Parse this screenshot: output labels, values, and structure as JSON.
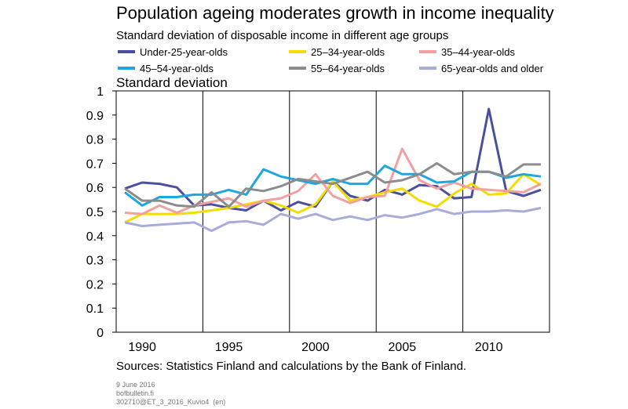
{
  "title": "Population ageing moderates growth in income inequality",
  "subtitle": "Standard deviation of disposable income in different age groups",
  "source": "Sources: Statistics Finland and calculations by the Bank of Finland.",
  "footer": {
    "date": "9 June 2016",
    "site": "bofbulletin.fi",
    "code": "302710@ET_3_2016_Kuvio4",
    "lang": "(en)"
  },
  "chart_data": {
    "type": "line",
    "ylabel": "Standard deviation",
    "ylim": [
      0,
      1
    ],
    "yticks": [
      "0",
      "0.1",
      "0.2",
      "0.3",
      "0.4",
      "0.5",
      "0.6",
      "0.7",
      "0.8",
      "0.9",
      "1"
    ],
    "xlim": [
      1988.5,
      2013.5
    ],
    "xticks": [
      "1990",
      "1995",
      "2000",
      "2005",
      "2010"
    ],
    "grid": "vertical",
    "legend_position": "top",
    "x": [
      1989,
      1990,
      1991,
      1992,
      1993,
      1994,
      1995,
      1996,
      1997,
      1998,
      1999,
      2000,
      2001,
      2002,
      2003,
      2004,
      2005,
      2006,
      2007,
      2008,
      2009,
      2010,
      2011,
      2012,
      2013
    ],
    "series": [
      {
        "name": "Under-25-year-olds",
        "color": "#4a4f9e",
        "values": [
          0.595,
          0.62,
          0.615,
          0.6,
          0.525,
          0.53,
          0.515,
          0.505,
          0.545,
          0.505,
          0.54,
          0.52,
          0.625,
          0.565,
          0.545,
          0.59,
          0.57,
          0.61,
          0.605,
          0.555,
          0.56,
          0.925,
          0.585,
          0.565,
          0.59
        ]
      },
      {
        "name": "25–34-year-olds",
        "color": "#f5dc00",
        "values": [
          0.455,
          0.49,
          0.49,
          0.49,
          0.495,
          0.505,
          0.515,
          0.53,
          0.545,
          0.525,
          0.495,
          0.53,
          0.625,
          0.545,
          0.56,
          0.58,
          0.595,
          0.545,
          0.52,
          0.575,
          0.615,
          0.57,
          0.575,
          0.655,
          0.61
        ]
      },
      {
        "name": "35–44-year-olds",
        "color": "#f2a0a0",
        "values": [
          0.495,
          0.49,
          0.525,
          0.495,
          0.525,
          0.54,
          0.555,
          0.52,
          0.545,
          0.555,
          0.585,
          0.655,
          0.565,
          0.535,
          0.56,
          0.565,
          0.76,
          0.63,
          0.595,
          0.62,
          0.595,
          0.59,
          0.585,
          0.58,
          0.615
        ]
      },
      {
        "name": "45–54-year-olds",
        "color": "#1ea6e0",
        "values": [
          0.58,
          0.525,
          0.56,
          0.56,
          0.57,
          0.57,
          0.59,
          0.57,
          0.675,
          0.645,
          0.63,
          0.615,
          0.635,
          0.615,
          0.615,
          0.69,
          0.655,
          0.655,
          0.62,
          0.625,
          0.665,
          0.665,
          0.64,
          0.655,
          0.645
        ]
      },
      {
        "name": "55–64-year-olds",
        "color": "#8c8c8c",
        "values": [
          0.595,
          0.545,
          0.545,
          0.525,
          0.52,
          0.58,
          0.52,
          0.595,
          0.585,
          0.605,
          0.635,
          0.625,
          0.615,
          0.64,
          0.665,
          0.62,
          0.63,
          0.655,
          0.7,
          0.655,
          0.665,
          0.665,
          0.645,
          0.695,
          0.695
        ]
      },
      {
        "name": "65-year-olds and older",
        "color": "#a8acd8",
        "values": [
          0.455,
          0.44,
          0.445,
          0.45,
          0.455,
          0.42,
          0.455,
          0.46,
          0.445,
          0.49,
          0.47,
          0.49,
          0.465,
          0.48,
          0.465,
          0.485,
          0.475,
          0.49,
          0.51,
          0.49,
          0.5,
          0.5,
          0.505,
          0.5,
          0.515
        ]
      }
    ]
  }
}
